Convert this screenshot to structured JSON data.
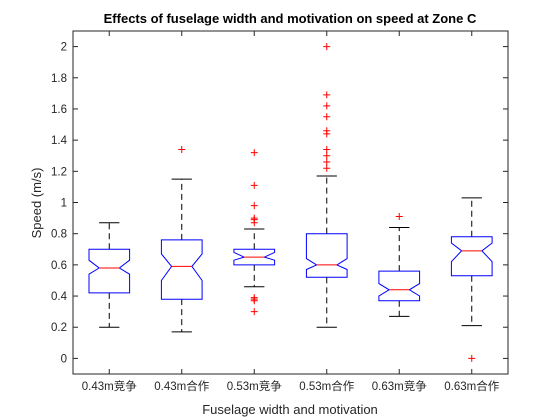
{
  "chart_data": {
    "type": "boxplot",
    "title": "Effects of fuselage width and motivation on speed at Zone C",
    "xlabel": "Fuselage width and motivation",
    "ylabel": "Speed (m/s)",
    "ylim": [
      -0.1,
      2.1
    ],
    "yticks": [
      0,
      0.2,
      0.4,
      0.6,
      0.8,
      1,
      1.2,
      1.4,
      1.6,
      1.8,
      2
    ],
    "ytick_labels": [
      "0",
      "0.2",
      "0.4",
      "0.6",
      "0.8",
      "1",
      "1.2",
      "1.4",
      "1.6",
      "1.8",
      "2"
    ],
    "notched": true,
    "grid": false,
    "colors": {
      "box": "#0000ff",
      "median": "#ff0000",
      "whisker": "#000000",
      "outlier": "#ff0000",
      "axes": "#262626"
    },
    "categories": [
      "0.43m竞争",
      "0.43m合作",
      "0.53m竞争",
      "0.53m合作",
      "0.63m竞争",
      "0.63m合作"
    ],
    "boxes": [
      {
        "q1": 0.42,
        "median": 0.58,
        "q3": 0.7,
        "notch_low": 0.54,
        "notch_high": 0.63,
        "whisker_low": 0.2,
        "whisker_high": 0.87,
        "outliers": []
      },
      {
        "q1": 0.38,
        "median": 0.59,
        "q3": 0.76,
        "notch_low": 0.5,
        "notch_high": 0.67,
        "whisker_low": 0.17,
        "whisker_high": 1.15,
        "outliers": [
          1.34
        ]
      },
      {
        "q1": 0.6,
        "median": 0.65,
        "q3": 0.7,
        "notch_low": 0.63,
        "notch_high": 0.68,
        "whisker_low": 0.46,
        "whisker_high": 0.83,
        "outliers": [
          0.3,
          0.37,
          0.38,
          0.39,
          0.87,
          0.89,
          0.9,
          0.98,
          1.11,
          1.32
        ]
      },
      {
        "q1": 0.52,
        "median": 0.6,
        "q3": 0.8,
        "notch_low": 0.57,
        "notch_high": 0.64,
        "whisker_low": 0.2,
        "whisker_high": 1.17,
        "outliers": [
          1.22,
          1.26,
          1.3,
          1.34,
          1.44,
          1.46,
          1.55,
          1.62,
          1.69,
          2.0
        ]
      },
      {
        "q1": 0.37,
        "median": 0.44,
        "q3": 0.56,
        "notch_low": 0.4,
        "notch_high": 0.48,
        "whisker_low": 0.27,
        "whisker_high": 0.84,
        "outliers": [
          0.91
        ]
      },
      {
        "q1": 0.53,
        "median": 0.69,
        "q3": 0.78,
        "notch_low": 0.62,
        "notch_high": 0.74,
        "whisker_low": 0.21,
        "whisker_high": 1.03,
        "outliers": [
          0.0
        ]
      }
    ]
  }
}
